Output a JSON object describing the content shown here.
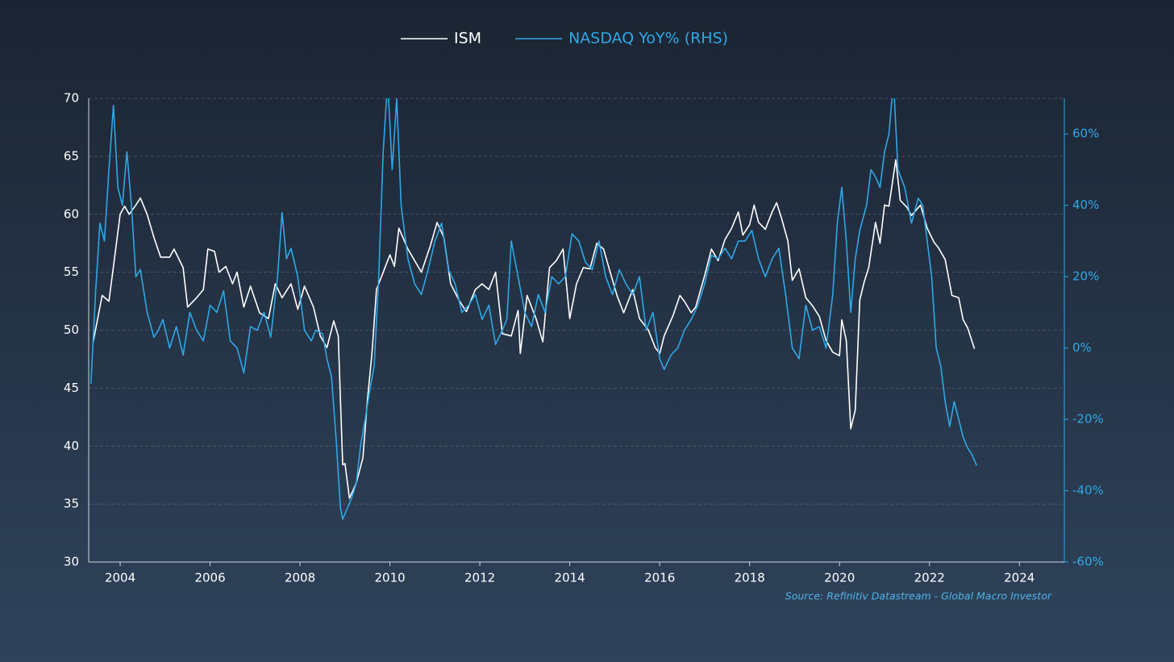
{
  "chart_data": {
    "type": "line",
    "source": "Source: Refinitiv Datastream - Global Macro Investor",
    "x": [],
    "xlim": [
      2003.3,
      2025.0
    ],
    "xticks": [
      2004,
      2006,
      2008,
      2010,
      2012,
      2014,
      2016,
      2018,
      2020,
      2022,
      2024
    ],
    "ylim": [
      30,
      70
    ],
    "yticks": [
      30,
      35,
      40,
      45,
      50,
      55,
      60,
      65,
      70
    ],
    "y2lim": [
      -60,
      70
    ],
    "y2ticks": [
      {
        "value": -60,
        "label": "-60%"
      },
      {
        "value": -40,
        "label": "-40%"
      },
      {
        "value": -20,
        "label": "-20%"
      },
      {
        "value": 0,
        "label": "0%"
      },
      {
        "value": 20,
        "label": "20%"
      },
      {
        "value": 40,
        "label": "40%"
      },
      {
        "value": 60,
        "label": "60%"
      }
    ],
    "grid": true,
    "legend": "top",
    "series": [
      {
        "name": "ISM",
        "color": "#ffffff",
        "x": [
          2003.4,
          2003.6,
          2003.75,
          2003.9,
          2004.0,
          2004.1,
          2004.2,
          2004.35,
          2004.45,
          2004.6,
          2004.75,
          2004.9,
          2005.1,
          2005.2,
          2005.4,
          2005.5,
          2005.7,
          2005.85,
          2005.95,
          2006.1,
          2006.2,
          2006.35,
          2006.5,
          2006.6,
          2006.75,
          2006.9,
          2007.1,
          2007.3,
          2007.45,
          2007.6,
          2007.8,
          2007.95,
          2008.1,
          2008.3,
          2008.45,
          2008.6,
          2008.75,
          2008.85,
          2008.95,
          2009.0,
          2009.1,
          2009.25,
          2009.4,
          2009.5,
          2009.6,
          2009.7,
          2009.9,
          2010.0,
          2010.1,
          2010.2,
          2010.4,
          2010.55,
          2010.7,
          2010.9,
          2011.05,
          2011.2,
          2011.35,
          2011.55,
          2011.7,
          2011.9,
          2012.05,
          2012.2,
          2012.35,
          2012.5,
          2012.7,
          2012.85,
          2012.9,
          2013.05,
          2013.25,
          2013.4,
          2013.55,
          2013.7,
          2013.85,
          2014.0,
          2014.15,
          2014.3,
          2014.45,
          2014.6,
          2014.75,
          2014.9,
          2015.05,
          2015.2,
          2015.4,
          2015.55,
          2015.75,
          2015.9,
          2016.0,
          2016.1,
          2016.3,
          2016.45,
          2016.55,
          2016.7,
          2016.8,
          2017.0,
          2017.15,
          2017.3,
          2017.45,
          2017.6,
          2017.75,
          2017.85,
          2018.0,
          2018.1,
          2018.2,
          2018.35,
          2018.5,
          2018.6,
          2018.7,
          2018.85,
          2018.95,
          2019.1,
          2019.25,
          2019.4,
          2019.55,
          2019.7,
          2019.85,
          2020.0,
          2020.05,
          2020.15,
          2020.25,
          2020.35,
          2020.45,
          2020.55,
          2020.65,
          2020.8,
          2020.9,
          2021.0,
          2021.1,
          2021.25,
          2021.35,
          2021.5,
          2021.6,
          2021.8,
          2021.95,
          2022.1,
          2022.2,
          2022.35,
          2022.5,
          2022.65,
          2022.75,
          2022.85,
          2022.95,
          2023.0
        ],
        "values": [
          49,
          53,
          52.5,
          57,
          60,
          60.7,
          60,
          60.8,
          61.4,
          60,
          58,
          56.3,
          56.3,
          57,
          55.4,
          52,
          52.8,
          53.5,
          57,
          56.8,
          55,
          55.5,
          54,
          55,
          52,
          53.8,
          51.5,
          51,
          54,
          52.8,
          54,
          51.8,
          53.8,
          52,
          49.5,
          48.5,
          50.8,
          49.5,
          38.4,
          38.5,
          35.5,
          36.8,
          39,
          44,
          48,
          53.5,
          55.5,
          56.5,
          55.5,
          58.8,
          57,
          56,
          55,
          57.3,
          59.3,
          58,
          54,
          52.5,
          51.6,
          53.5,
          54,
          53.5,
          55,
          49.7,
          49.5,
          51.7,
          48,
          53,
          51,
          49,
          55.4,
          56,
          57,
          51,
          54,
          55.4,
          55.3,
          57.5,
          57,
          55,
          53,
          51.5,
          53.5,
          51,
          50,
          48.5,
          48,
          49.5,
          51.3,
          53,
          52.5,
          51.5,
          52,
          54.7,
          57,
          56,
          57.8,
          58.8,
          60.2,
          58.2,
          59.1,
          60.8,
          59.3,
          58.7,
          60.2,
          61,
          59.8,
          57.7,
          54.3,
          55.3,
          52.8,
          52.1,
          51.2,
          49.1,
          48.1,
          47.8,
          50.9,
          49.1,
          41.5,
          43.1,
          52.6,
          54.2,
          55.4,
          59.3,
          57.5,
          60.8,
          60.7,
          64.7,
          61.2,
          60.6,
          59.9,
          60.8,
          58.8,
          57.6,
          57.1,
          56.1,
          53,
          52.8,
          50.9,
          50.2,
          49,
          48.4
        ]
      },
      {
        "name": "NASDAQ YoY% (RHS)",
        "color": "#2ea8e6",
        "axis": "y2",
        "x": [
          2003.35,
          2003.45,
          2003.55,
          2003.65,
          2003.75,
          2003.85,
          2003.95,
          2004.05,
          2004.15,
          2004.25,
          2004.35,
          2004.45,
          2004.6,
          2004.75,
          2004.85,
          2004.95,
          2005.1,
          2005.25,
          2005.4,
          2005.55,
          2005.7,
          2005.85,
          2006.0,
          2006.15,
          2006.3,
          2006.45,
          2006.6,
          2006.75,
          2006.9,
          2007.05,
          2007.2,
          2007.35,
          2007.5,
          2007.6,
          2007.7,
          2007.8,
          2007.95,
          2008.1,
          2008.25,
          2008.35,
          2008.5,
          2008.6,
          2008.7,
          2008.8,
          2008.9,
          2008.95,
          2009.05,
          2009.15,
          2009.25,
          2009.35,
          2009.45,
          2009.55,
          2009.65,
          2009.75,
          2009.85,
          2009.95,
          2010.05,
          2010.15,
          2010.25,
          2010.4,
          2010.55,
          2010.7,
          2010.85,
          2011.0,
          2011.15,
          2011.3,
          2011.45,
          2011.6,
          2011.75,
          2011.9,
          2012.05,
          2012.2,
          2012.35,
          2012.5,
          2012.6,
          2012.7,
          2012.85,
          2013.0,
          2013.15,
          2013.3,
          2013.45,
          2013.6,
          2013.75,
          2013.9,
          2014.05,
          2014.2,
          2014.35,
          2014.5,
          2014.65,
          2014.8,
          2014.95,
          2015.1,
          2015.25,
          2015.4,
          2015.55,
          2015.7,
          2015.85,
          2016.0,
          2016.1,
          2016.25,
          2016.4,
          2016.55,
          2016.7,
          2016.85,
          2017.0,
          2017.15,
          2017.3,
          2017.45,
          2017.6,
          2017.75,
          2017.9,
          2018.05,
          2018.2,
          2018.35,
          2018.5,
          2018.65,
          2018.8,
          2018.95,
          2019.1,
          2019.25,
          2019.4,
          2019.55,
          2019.7,
          2019.85,
          2019.95,
          2020.05,
          2020.15,
          2020.25,
          2020.35,
          2020.45,
          2020.6,
          2020.7,
          2020.8,
          2020.9,
          2021.0,
          2021.1,
          2021.2,
          2021.3,
          2021.45,
          2021.6,
          2021.75,
          2021.85,
          2021.95,
          2022.05,
          2022.15,
          2022.25,
          2022.35,
          2022.45,
          2022.55,
          2022.65,
          2022.75,
          2022.85,
          2022.95,
          2023.05
        ],
        "values": [
          -10,
          15,
          35,
          30,
          50,
          68,
          45,
          40,
          55,
          40,
          20,
          22,
          10,
          3,
          5,
          8,
          0,
          6,
          -2,
          10,
          5,
          2,
          12,
          10,
          16,
          2,
          0,
          -7,
          6,
          5,
          10,
          3,
          20,
          38,
          25,
          28,
          20,
          5,
          2,
          5,
          4,
          -3,
          -8,
          -25,
          -45,
          -48,
          -45,
          -42,
          -38,
          -27,
          -20,
          -12,
          -5,
          20,
          55,
          75,
          50,
          70,
          40,
          25,
          18,
          15,
          22,
          30,
          35,
          22,
          18,
          10,
          12,
          15,
          8,
          12,
          1,
          5,
          8,
          30,
          20,
          10,
          6,
          15,
          10,
          20,
          18,
          20,
          32,
          30,
          24,
          22,
          30,
          20,
          15,
          22,
          18,
          15,
          20,
          5,
          10,
          -3,
          -6,
          -2,
          0,
          5,
          8,
          12,
          18,
          26,
          25,
          28,
          25,
          30,
          30,
          33,
          25,
          20,
          25,
          28,
          15,
          0,
          -3,
          12,
          5,
          6,
          0,
          15,
          35,
          45,
          30,
          10,
          25,
          33,
          40,
          50,
          48,
          45,
          55,
          60,
          75,
          50,
          45,
          35,
          42,
          40,
          30,
          20,
          0,
          -5,
          -15,
          -22,
          -15,
          -20,
          -25,
          -28,
          -30,
          -33
        ]
      }
    ]
  }
}
